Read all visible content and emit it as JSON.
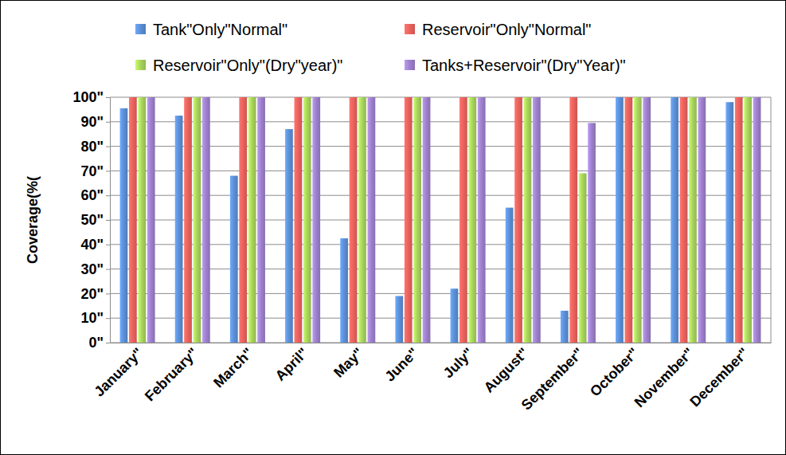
{
  "chart_data": {
    "type": "bar",
    "y_label": "Coverage(%(",
    "categories": [
      "January\"",
      "February\"",
      "March\"",
      "April\"",
      "May\"",
      "June\"",
      "July\"",
      "August\"",
      "September\"",
      "October\"",
      "November\"",
      "December\""
    ],
    "series": [
      {
        "name": "Tank\"Only\"Normal\"",
        "color": "#5b8fd6",
        "values": [
          95.5,
          92.5,
          68,
          87,
          42.5,
          19,
          22,
          55,
          13,
          100,
          100,
          98
        ]
      },
      {
        "name": "Reservoir\"Only\"Normal\"",
        "color": "#ea625d",
        "values": [
          100,
          100,
          100,
          100,
          100,
          100,
          100,
          100,
          100,
          100,
          100,
          100
        ]
      },
      {
        "name": "Reservoir\"Only\"(Dry\"year)\"",
        "color": "#a8d35c",
        "values": [
          100,
          100,
          100,
          100,
          100,
          100,
          100,
          100,
          69,
          100,
          100,
          100
        ]
      },
      {
        "name": "Tanks+Reservoir\"(Dry\"Year)\"",
        "color": "#9d80cb",
        "values": [
          100,
          100,
          100,
          100,
          100,
          100,
          100,
          100,
          89.5,
          100,
          100,
          100
        ]
      }
    ],
    "ylim": [
      0,
      100
    ],
    "yticks": [
      {
        "value": 0,
        "label": "0\""
      },
      {
        "value": 10,
        "label": "10\""
      },
      {
        "value": 20,
        "label": "20\""
      },
      {
        "value": 30,
        "label": "30\""
      },
      {
        "value": 40,
        "label": "40\""
      },
      {
        "value": 50,
        "label": "50\""
      },
      {
        "value": 60,
        "label": "60\""
      },
      {
        "value": 70,
        "label": "70\""
      },
      {
        "value": 80,
        "label": "80\""
      },
      {
        "value": 90,
        "label": "90\""
      },
      {
        "value": 100,
        "label": "100\""
      }
    ],
    "grid": true,
    "legend": "top"
  }
}
